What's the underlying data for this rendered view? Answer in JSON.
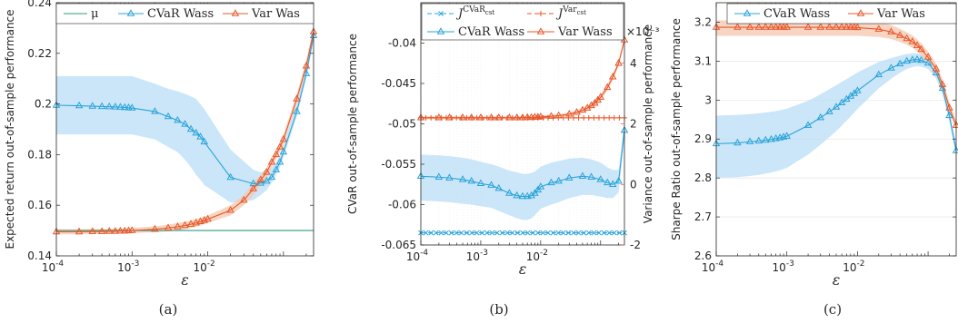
{
  "colors": {
    "mu": "#2e9e7e",
    "cvar": "#2aa3d8",
    "var": "#e8572a",
    "cvar_band": "#b9def5",
    "var_band": "#f6c7ad"
  },
  "chart_data": [
    {
      "type": "line",
      "caption": "(a)",
      "xscale": "log",
      "xlim": [
        0.0001,
        0.25
      ],
      "xlabel": "ε",
      "ylabel": "Expected return out-of-sample performance",
      "ylim": [
        0.14,
        0.24
      ],
      "xticks": [
        {
          "v": 0.0001,
          "m": "10",
          "e": "-4"
        },
        {
          "v": 0.001,
          "m": "10",
          "e": "-3"
        },
        {
          "v": 0.01,
          "m": "10",
          "e": "-2"
        }
      ],
      "yticks": [
        {
          "v": 0.14,
          "label": "0.14"
        },
        {
          "v": 0.16,
          "label": "0.16"
        },
        {
          "v": 0.18,
          "label": "0.18"
        },
        {
          "v": 0.2,
          "label": "0.2"
        },
        {
          "v": 0.22,
          "label": "0.22"
        },
        {
          "v": 0.24,
          "label": "0.24"
        }
      ],
      "legend": {
        "position": "top",
        "entries": [
          "μ",
          "CVaR Wass",
          "Var Was"
        ]
      },
      "series": [
        {
          "name": "μ",
          "style": "mu",
          "x": [
            0.0001,
            0.25
          ],
          "y": [
            0.15,
            0.15
          ]
        },
        {
          "name": "CVaR Wass",
          "style": "cvar",
          "x": [
            0.0001,
            0.0002,
            0.0003,
            0.0004,
            0.0005,
            0.0006,
            0.0007,
            0.0008,
            0.0009,
            0.001,
            0.002,
            0.003,
            0.004,
            0.005,
            0.006,
            0.007,
            0.008,
            0.009,
            0.02,
            0.04,
            0.05,
            0.06,
            0.07,
            0.08,
            0.09,
            0.1,
            0.15,
            0.2,
            0.25
          ],
          "y": [
            0.1995,
            0.1993,
            0.1991,
            0.199,
            0.1989,
            0.1988,
            0.1987,
            0.1986,
            0.1985,
            0.1984,
            0.197,
            0.195,
            0.1935,
            0.192,
            0.19,
            0.1885,
            0.187,
            0.185,
            0.171,
            0.1685,
            0.1687,
            0.1695,
            0.171,
            0.174,
            0.177,
            0.181,
            0.197,
            0.212,
            0.227
          ],
          "band_lo": [
            0.188,
            0.188,
            0.188,
            0.188,
            0.188,
            0.188,
            0.188,
            0.188,
            0.188,
            0.188,
            0.186,
            0.183,
            0.181,
            0.178,
            0.175,
            0.172,
            0.17,
            0.168,
            0.161,
            0.162,
            0.164,
            0.166,
            0.169,
            0.172,
            0.175,
            0.179,
            0.195,
            0.21,
            0.225
          ],
          "band_hi": [
            0.211,
            0.211,
            0.211,
            0.211,
            0.211,
            0.211,
            0.211,
            0.211,
            0.211,
            0.211,
            0.208,
            0.206,
            0.205,
            0.204,
            0.203,
            0.202,
            0.2,
            0.198,
            0.182,
            0.174,
            0.173,
            0.174,
            0.175,
            0.177,
            0.18,
            0.184,
            0.2,
            0.215,
            0.231
          ]
        },
        {
          "name": "Var Was",
          "style": "var",
          "x": [
            0.0001,
            0.0002,
            0.0003,
            0.0004,
            0.0005,
            0.0006,
            0.0007,
            0.0008,
            0.0009,
            0.001,
            0.002,
            0.003,
            0.004,
            0.005,
            0.006,
            0.007,
            0.008,
            0.009,
            0.01,
            0.02,
            0.03,
            0.04,
            0.05,
            0.06,
            0.07,
            0.08,
            0.09,
            0.1,
            0.15,
            0.2,
            0.25
          ],
          "y": [
            0.1495,
            0.1495,
            0.1496,
            0.1496,
            0.1497,
            0.1497,
            0.1498,
            0.1498,
            0.1499,
            0.15,
            0.1505,
            0.151,
            0.1515,
            0.152,
            0.1525,
            0.153,
            0.1535,
            0.154,
            0.1545,
            0.158,
            0.162,
            0.1665,
            0.17,
            0.173,
            0.177,
            0.18,
            0.183,
            0.186,
            0.202,
            0.215,
            0.2285
          ],
          "band_lo": [
            0.1485,
            0.1485,
            0.1486,
            0.1486,
            0.1487,
            0.1487,
            0.1488,
            0.1488,
            0.1489,
            0.149,
            0.1493,
            0.1497,
            0.15,
            0.1505,
            0.151,
            0.1515,
            0.152,
            0.1525,
            0.153,
            0.156,
            0.16,
            0.164,
            0.168,
            0.171,
            0.175,
            0.178,
            0.181,
            0.184,
            0.2,
            0.213,
            0.226
          ],
          "band_hi": [
            0.1505,
            0.1505,
            0.1506,
            0.1506,
            0.1507,
            0.1507,
            0.1508,
            0.1508,
            0.1509,
            0.151,
            0.1517,
            0.1523,
            0.153,
            0.1535,
            0.154,
            0.1545,
            0.155,
            0.1555,
            0.156,
            0.16,
            0.164,
            0.169,
            0.172,
            0.175,
            0.179,
            0.182,
            0.185,
            0.188,
            0.204,
            0.217,
            0.231
          ]
        }
      ]
    },
    {
      "type": "line",
      "caption": "(b)",
      "xscale": "log",
      "xlim": [
        0.0001,
        0.25
      ],
      "xlabel": "ε",
      "ylabel": "CVaR out-of-sample performance",
      "ylim": [
        -0.065,
        -0.035
      ],
      "yticks": [
        {
          "v": -0.065,
          "label": "-0.065"
        },
        {
          "v": -0.06,
          "label": "-0.06"
        },
        {
          "v": -0.055,
          "label": "-0.055"
        },
        {
          "v": -0.05,
          "label": "-0.05"
        },
        {
          "v": -0.045,
          "label": "-0.045"
        },
        {
          "v": -0.04,
          "label": "-0.04"
        }
      ],
      "y2label": "Variance out-of-sample performance",
      "y2lim": [
        -0.002,
        0.006
      ],
      "y2exponent": "×10⁻³",
      "y2ticks": [
        {
          "v": -0.002,
          "label": "-2"
        },
        {
          "v": 0,
          "label": "0"
        },
        {
          "v": 0.002,
          "label": "2"
        },
        {
          "v": 0.004,
          "label": "4"
        }
      ],
      "xticks": [
        {
          "v": 0.0001,
          "m": "10",
          "e": "-4"
        },
        {
          "v": 0.001,
          "m": "10",
          "e": "-3"
        },
        {
          "v": 0.01,
          "m": "10",
          "e": "-2"
        }
      ],
      "legend": {
        "position": "top",
        "entries": [
          "J^CVaR_cst",
          "J^Var_cst",
          "CVaR Wass",
          "Var Wass"
        ]
      },
      "series": [
        {
          "name": "J^CVaR_cst",
          "style": "cvar_const",
          "axis": "left",
          "x": [
            0.0001,
            0.25
          ],
          "y": [
            -0.0635,
            -0.0635
          ]
        },
        {
          "name": "J^Var_cst",
          "style": "var_const",
          "axis": "right",
          "x": [
            0.0001,
            0.25
          ],
          "y": [
            0.0022,
            0.0022
          ]
        },
        {
          "name": "CVaR Wass",
          "style": "cvar",
          "axis": "left",
          "x": [
            0.0001,
            0.0002,
            0.0003,
            0.0005,
            0.0007,
            0.001,
            0.0015,
            0.002,
            0.003,
            0.004,
            0.005,
            0.006,
            0.007,
            0.008,
            0.009,
            0.01,
            0.015,
            0.02,
            0.03,
            0.05,
            0.07,
            0.1,
            0.13,
            0.16,
            0.2,
            0.25
          ],
          "y": [
            -0.0565,
            -0.0566,
            -0.0567,
            -0.0569,
            -0.0571,
            -0.0574,
            -0.0576,
            -0.058,
            -0.0586,
            -0.0589,
            -0.059,
            -0.059,
            -0.0589,
            -0.0586,
            -0.0582,
            -0.0578,
            -0.0573,
            -0.0571,
            -0.0567,
            -0.0565,
            -0.0566,
            -0.0569,
            -0.0573,
            -0.0575,
            -0.0571,
            -0.0508
          ],
          "band_lo": [
            -0.0595,
            -0.0596,
            -0.0597,
            -0.0599,
            -0.06,
            -0.0602,
            -0.0604,
            -0.0608,
            -0.0613,
            -0.0617,
            -0.0619,
            -0.0619,
            -0.0617,
            -0.0613,
            -0.0609,
            -0.0605,
            -0.06,
            -0.0597,
            -0.0592,
            -0.0588,
            -0.0588,
            -0.059,
            -0.0592,
            -0.0592,
            -0.0585,
            -0.0518
          ],
          "band_hi": [
            -0.0538,
            -0.0539,
            -0.054,
            -0.0542,
            -0.0544,
            -0.0547,
            -0.055,
            -0.0553,
            -0.0558,
            -0.056,
            -0.0562,
            -0.0562,
            -0.0561,
            -0.0559,
            -0.0556,
            -0.0553,
            -0.0548,
            -0.0546,
            -0.0543,
            -0.0542,
            -0.0544,
            -0.0548,
            -0.0554,
            -0.0557,
            -0.0557,
            -0.0498
          ]
        },
        {
          "name": "Var Wass",
          "style": "var",
          "axis": "right",
          "x": [
            0.0001,
            0.0002,
            0.0003,
            0.0005,
            0.0007,
            0.001,
            0.0015,
            0.002,
            0.003,
            0.004,
            0.005,
            0.006,
            0.007,
            0.008,
            0.009,
            0.01,
            0.015,
            0.02,
            0.03,
            0.04,
            0.05,
            0.06,
            0.07,
            0.08,
            0.09,
            0.1,
            0.13,
            0.16,
            0.2,
            0.25
          ],
          "y": [
            0.0022,
            0.0022,
            0.0022,
            0.0022,
            0.0022,
            0.0022,
            0.0022,
            0.0022,
            0.0022,
            0.0022,
            0.0022,
            0.00221,
            0.00221,
            0.00222,
            0.00222,
            0.00223,
            0.00225,
            0.00227,
            0.00232,
            0.00238,
            0.00245,
            0.00252,
            0.0026,
            0.00268,
            0.00278,
            0.00288,
            0.0032,
            0.00355,
            0.004,
            0.00477
          ],
          "band_lo": [
            0.00215,
            0.00215,
            0.00215,
            0.00215,
            0.00215,
            0.00215,
            0.00215,
            0.00215,
            0.00215,
            0.00215,
            0.00215,
            0.00216,
            0.00216,
            0.00217,
            0.00217,
            0.00218,
            0.0022,
            0.00222,
            0.00226,
            0.00231,
            0.00237,
            0.00244,
            0.00251,
            0.00259,
            0.00268,
            0.00278,
            0.0031,
            0.00344,
            0.0039,
            0.00468
          ],
          "band_hi": [
            0.00225,
            0.00225,
            0.00225,
            0.00225,
            0.00225,
            0.00225,
            0.00225,
            0.00225,
            0.00225,
            0.00225,
            0.00225,
            0.00226,
            0.00226,
            0.00227,
            0.00227,
            0.00228,
            0.0023,
            0.00232,
            0.00238,
            0.00245,
            0.00253,
            0.0026,
            0.00269,
            0.00277,
            0.00288,
            0.00298,
            0.0033,
            0.00366,
            0.0041,
            0.00486
          ]
        }
      ]
    },
    {
      "type": "line",
      "caption": "(c)",
      "xscale": "log",
      "xlim": [
        0.0001,
        0.25
      ],
      "xlabel": "ε",
      "ylabel": "Sharpe Ratio out-of-sample performance",
      "ylim": [
        2.6,
        3.25
      ],
      "yticks": [
        {
          "v": 2.6,
          "label": "2.6"
        },
        {
          "v": 2.7,
          "label": "2.7"
        },
        {
          "v": 2.8,
          "label": "2.8"
        },
        {
          "v": 2.9,
          "label": "2.9"
        },
        {
          "v": 3.0,
          "label": "3"
        },
        {
          "v": 3.1,
          "label": "3.1"
        },
        {
          "v": 3.2,
          "label": "3.2"
        }
      ],
      "xticks": [
        {
          "v": 0.0001,
          "m": "10",
          "e": "-4"
        },
        {
          "v": 0.001,
          "m": "10",
          "e": "-3"
        },
        {
          "v": 0.01,
          "m": "10",
          "e": "-2"
        }
      ],
      "legend": {
        "position": "top",
        "entries": [
          "CVaR Wass",
          "Var Was"
        ]
      },
      "series": [
        {
          "name": "CVaR Wass",
          "style": "cvar",
          "x": [
            0.0001,
            0.0002,
            0.0003,
            0.0004,
            0.0005,
            0.0006,
            0.0007,
            0.0008,
            0.0009,
            0.001,
            0.002,
            0.003,
            0.004,
            0.005,
            0.006,
            0.007,
            0.008,
            0.009,
            0.01,
            0.02,
            0.03,
            0.04,
            0.05,
            0.06,
            0.07,
            0.08,
            0.1,
            0.13,
            0.16,
            0.2,
            0.25
          ],
          "y": [
            2.888,
            2.89,
            2.893,
            2.895,
            2.897,
            2.899,
            2.901,
            2.903,
            2.905,
            2.907,
            2.935,
            2.955,
            2.97,
            2.982,
            2.993,
            3.002,
            3.01,
            3.017,
            3.024,
            3.065,
            3.082,
            3.093,
            3.1,
            3.103,
            3.104,
            3.102,
            3.095,
            3.07,
            3.03,
            2.96,
            2.87
          ],
          "band_lo": [
            2.8,
            2.802,
            2.805,
            2.808,
            2.811,
            2.814,
            2.817,
            2.82,
            2.823,
            2.826,
            2.86,
            2.885,
            2.905,
            2.92,
            2.935,
            2.947,
            2.958,
            2.968,
            2.977,
            3.03,
            3.055,
            3.07,
            3.08,
            3.085,
            3.087,
            3.086,
            3.08,
            3.055,
            3.015,
            2.945,
            2.855
          ],
          "band_hi": [
            2.96,
            2.962,
            2.964,
            2.966,
            2.968,
            2.97,
            2.972,
            2.974,
            2.976,
            2.978,
            2.998,
            3.015,
            3.028,
            3.038,
            3.047,
            3.054,
            3.06,
            3.066,
            3.071,
            3.098,
            3.108,
            3.114,
            3.118,
            3.12,
            3.12,
            3.118,
            3.11,
            3.085,
            3.045,
            2.975,
            2.885
          ]
        },
        {
          "name": "Var Was",
          "style": "var",
          "x": [
            0.0001,
            0.0002,
            0.0003,
            0.0004,
            0.0005,
            0.0006,
            0.0007,
            0.0008,
            0.0009,
            0.001,
            0.002,
            0.003,
            0.004,
            0.005,
            0.006,
            0.007,
            0.008,
            0.009,
            0.01,
            0.02,
            0.03,
            0.04,
            0.05,
            0.06,
            0.07,
            0.08,
            0.1,
            0.13,
            0.16,
            0.2,
            0.25
          ],
          "y": [
            3.187,
            3.187,
            3.187,
            3.187,
            3.187,
            3.187,
            3.187,
            3.187,
            3.187,
            3.187,
            3.187,
            3.187,
            3.187,
            3.187,
            3.187,
            3.187,
            3.187,
            3.187,
            3.186,
            3.182,
            3.175,
            3.166,
            3.158,
            3.15,
            3.14,
            3.13,
            3.11,
            3.08,
            3.04,
            2.98,
            2.935
          ],
          "band_lo": [
            3.165,
            3.165,
            3.165,
            3.165,
            3.165,
            3.165,
            3.165,
            3.165,
            3.165,
            3.165,
            3.165,
            3.165,
            3.165,
            3.165,
            3.165,
            3.165,
            3.165,
            3.165,
            3.165,
            3.162,
            3.157,
            3.149,
            3.142,
            3.134,
            3.125,
            3.115,
            3.096,
            3.066,
            3.026,
            2.966,
            2.922
          ],
          "band_hi": [
            3.205,
            3.205,
            3.205,
            3.205,
            3.205,
            3.205,
            3.205,
            3.205,
            3.205,
            3.205,
            3.205,
            3.205,
            3.205,
            3.205,
            3.205,
            3.205,
            3.205,
            3.205,
            3.204,
            3.2,
            3.193,
            3.183,
            3.174,
            3.166,
            3.156,
            3.146,
            3.125,
            3.094,
            3.054,
            2.994,
            2.948
          ]
        }
      ]
    }
  ]
}
